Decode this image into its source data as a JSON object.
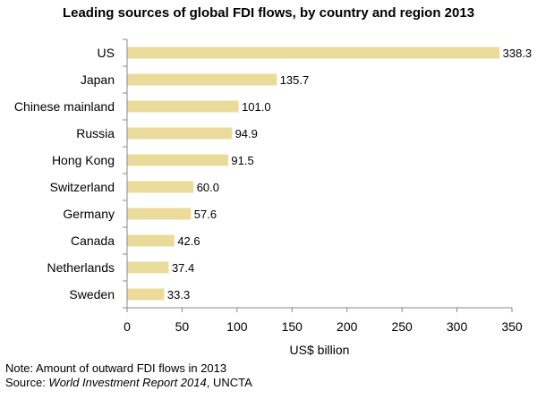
{
  "chart_data": {
    "type": "bar",
    "orientation": "horizontal",
    "title": "Leading sources of global FDI flows, by country and region 2013",
    "xlabel": "US$ billion",
    "ylabel": "",
    "categories": [
      "US",
      "Japan",
      "Chinese mainland",
      "Russia",
      "Hong Kong",
      "Switzerland",
      "Germany",
      "Canada",
      "Netherlands",
      "Sweden"
    ],
    "values": [
      338.3,
      135.7,
      101.0,
      94.9,
      91.5,
      60.0,
      57.6,
      42.6,
      37.4,
      33.3
    ],
    "value_labels": [
      "338.3",
      "135.7",
      "101.0",
      "94.9",
      "91.5",
      "60.0",
      "57.6",
      "42.6",
      "37.4",
      "33.3"
    ],
    "xlim": [
      0,
      350
    ],
    "xticks": [
      0,
      50,
      100,
      150,
      200,
      250,
      300,
      350
    ],
    "grid": false,
    "bar_color": "#EBDB9B"
  },
  "notes": {
    "note": "Note: Amount of outward FDI flows in 2013",
    "source_prefix": "Source: ",
    "source_title": "World Investment Report 2014",
    "source_suffix": ", UNCTA"
  }
}
